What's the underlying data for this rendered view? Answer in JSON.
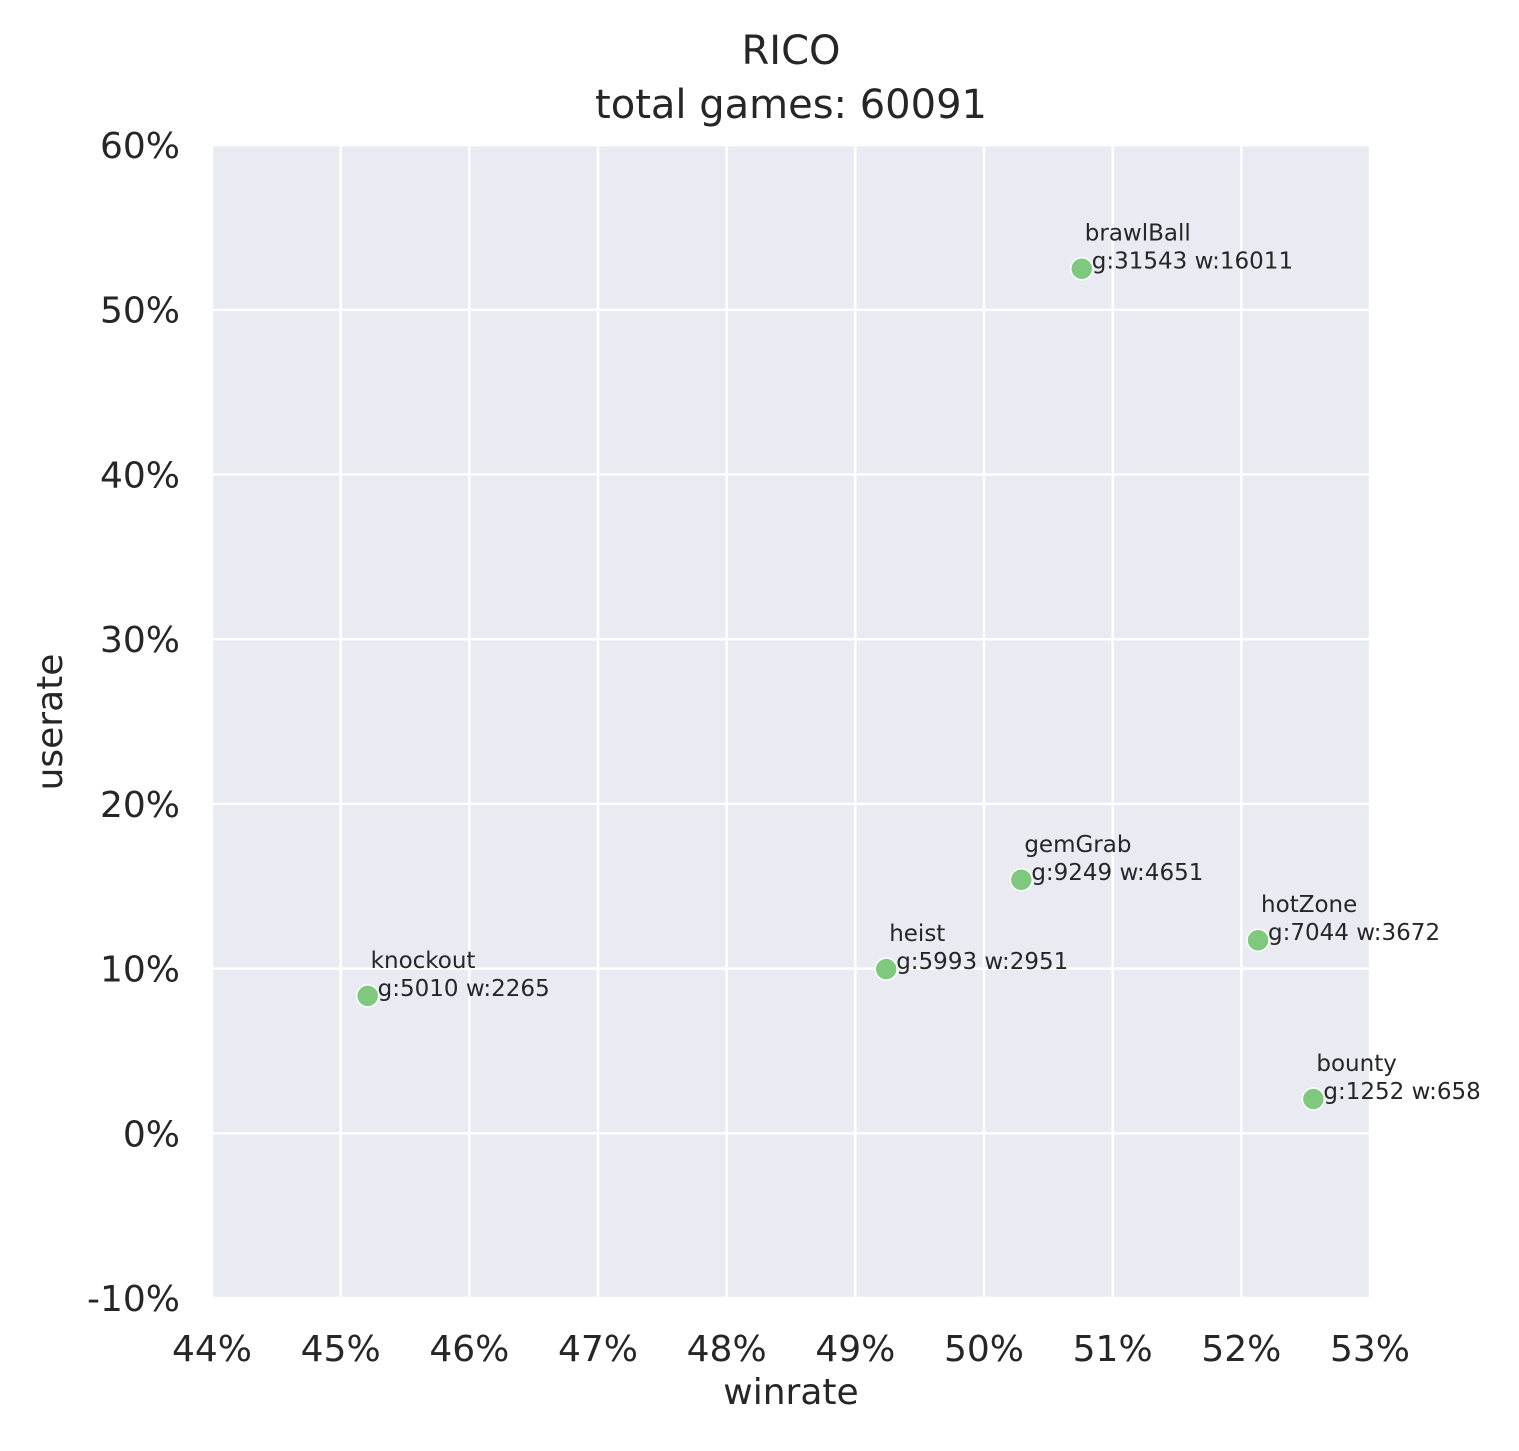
{
  "chart_data": {
    "type": "scatter",
    "title": "RICO",
    "subtitle": "total games: 60091",
    "xlabel": "winrate",
    "ylabel": "userate",
    "xlim": [
      44,
      53
    ],
    "ylim": [
      -10,
      60
    ],
    "xticks": [
      44,
      45,
      46,
      47,
      48,
      49,
      50,
      51,
      52,
      53
    ],
    "xtick_labels": [
      "44%",
      "45%",
      "46%",
      "47%",
      "48%",
      "49%",
      "50%",
      "51%",
      "52%",
      "53%"
    ],
    "yticks": [
      -10,
      0,
      10,
      20,
      30,
      40,
      50,
      60
    ],
    "ytick_labels": [
      "-10%",
      "0%",
      "10%",
      "20%",
      "30%",
      "40%",
      "50%",
      "60%"
    ],
    "grid": true,
    "background": "#eaeaf2",
    "point_color": "#7fc97f",
    "points": [
      {
        "name": "brawlBall",
        "x": 50.76,
        "y": 52.49,
        "detail": "g:31543 w:16011"
      },
      {
        "name": "gemGrab",
        "x": 50.29,
        "y": 15.39,
        "detail": "g:9249 w:4651"
      },
      {
        "name": "hotZone",
        "x": 52.13,
        "y": 11.72,
        "detail": "g:7044 w:3672"
      },
      {
        "name": "heist",
        "x": 49.24,
        "y": 9.97,
        "detail": "g:5993 w:2951"
      },
      {
        "name": "knockout",
        "x": 45.21,
        "y": 8.34,
        "detail": "g:5010 w:2265"
      },
      {
        "name": "bounty",
        "x": 52.56,
        "y": 2.08,
        "detail": "g:1252 w:658"
      }
    ]
  }
}
